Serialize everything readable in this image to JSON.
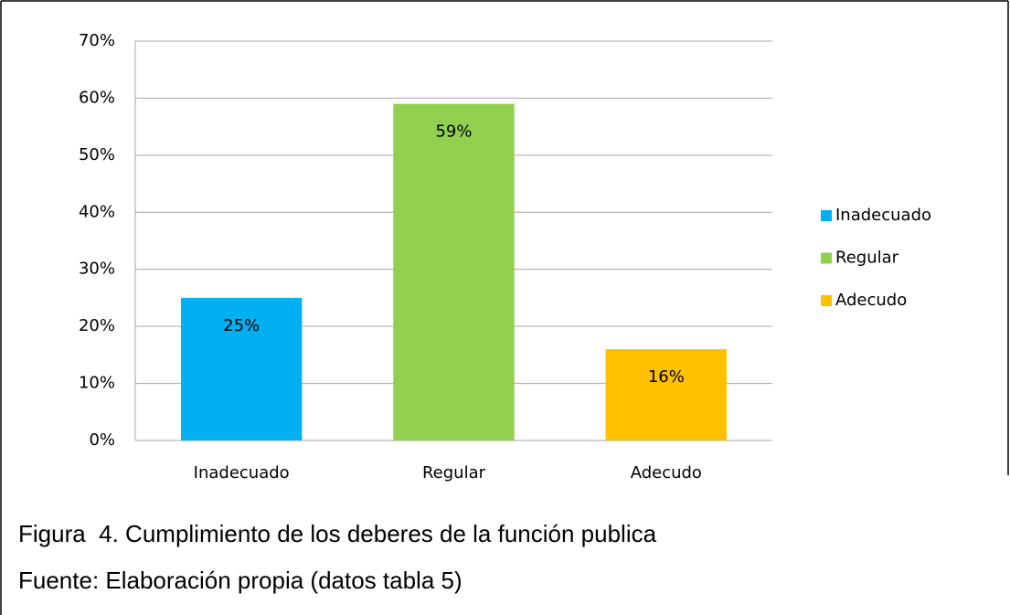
{
  "chart_data": {
    "type": "bar",
    "categories": [
      "Inadecuado",
      "Regular",
      "Adecudo"
    ],
    "values": [
      25,
      59,
      16
    ],
    "value_labels": [
      "25%",
      "59%",
      "16%"
    ],
    "series_colors": [
      "#00b0f0",
      "#92d050",
      "#ffc000"
    ],
    "legend": "right",
    "ylim": [
      0,
      70
    ],
    "yticks": [
      {
        "value": 0,
        "label": "0%"
      },
      {
        "value": 10,
        "label": "10%"
      },
      {
        "value": 20,
        "label": "20%"
      },
      {
        "value": 30,
        "label": "30%"
      },
      {
        "value": 40,
        "label": "40%"
      },
      {
        "value": 50,
        "label": "50%"
      },
      {
        "value": 60,
        "label": "60%"
      },
      {
        "value": 70,
        "label": "70%"
      }
    ],
    "grid": true,
    "caption": "Figura  4. Cumplimiento de los deberes de la función publica",
    "source": "Fuente: Elaboración propia (datos tabla 5)"
  }
}
